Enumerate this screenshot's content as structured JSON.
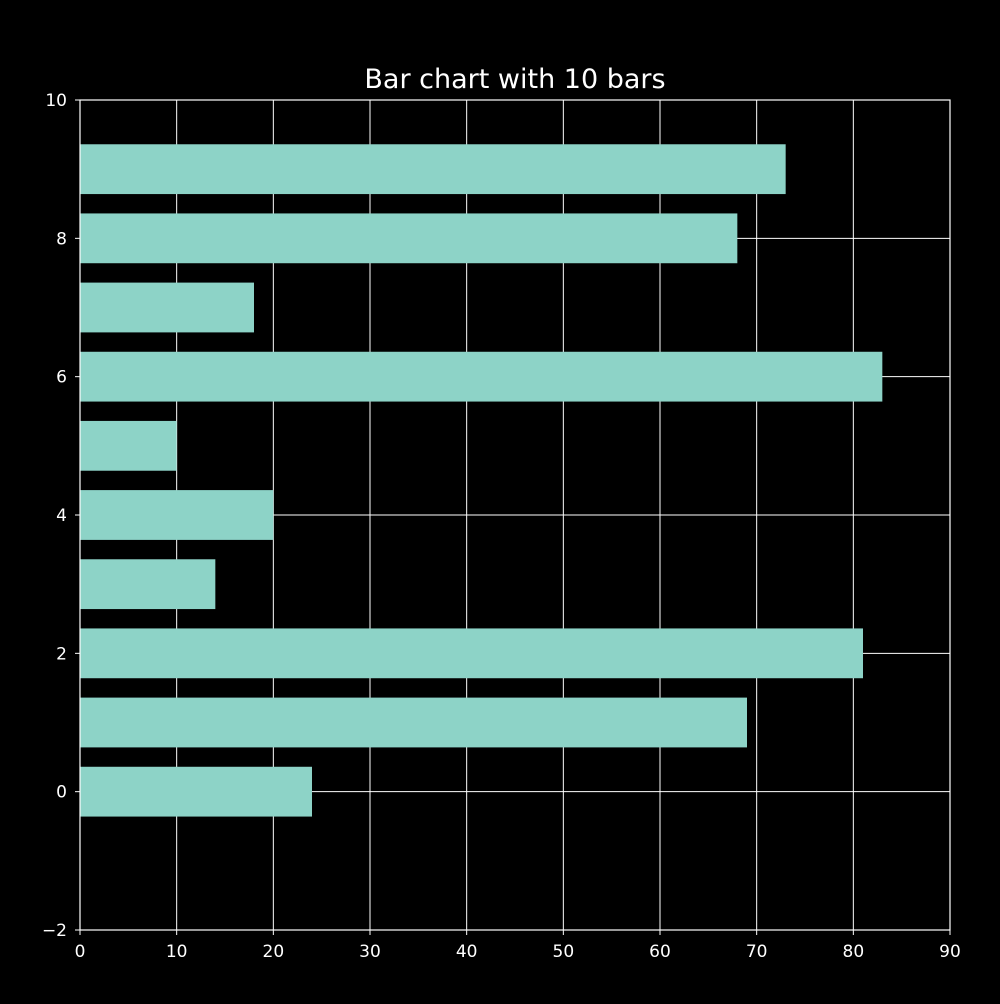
{
  "chart_data": {
    "type": "bar",
    "orientation": "horizontal",
    "title": "Bar chart with 10 bars",
    "xlabel": "",
    "ylabel": "",
    "categories": [
      0,
      1,
      2,
      3,
      4,
      5,
      6,
      7,
      8,
      9
    ],
    "values": [
      24,
      69,
      81,
      14,
      20,
      10,
      83,
      18,
      68,
      73
    ],
    "xlim": [
      0,
      90
    ],
    "ylim": [
      -2,
      10
    ],
    "x_ticks": [
      0,
      10,
      20,
      30,
      40,
      50,
      60,
      70,
      80,
      90
    ],
    "y_ticks": [
      -2,
      0,
      2,
      4,
      6,
      8,
      10
    ],
    "x_tick_labels": [
      "0",
      "10",
      "20",
      "30",
      "40",
      "50",
      "60",
      "70",
      "80",
      "90"
    ],
    "y_tick_labels": [
      "−2",
      "0",
      "2",
      "4",
      "6",
      "8",
      "10"
    ],
    "grid": true,
    "bar_color": "#8dd3c7",
    "background_color": "#000000",
    "axis_color": "#ffffff"
  }
}
